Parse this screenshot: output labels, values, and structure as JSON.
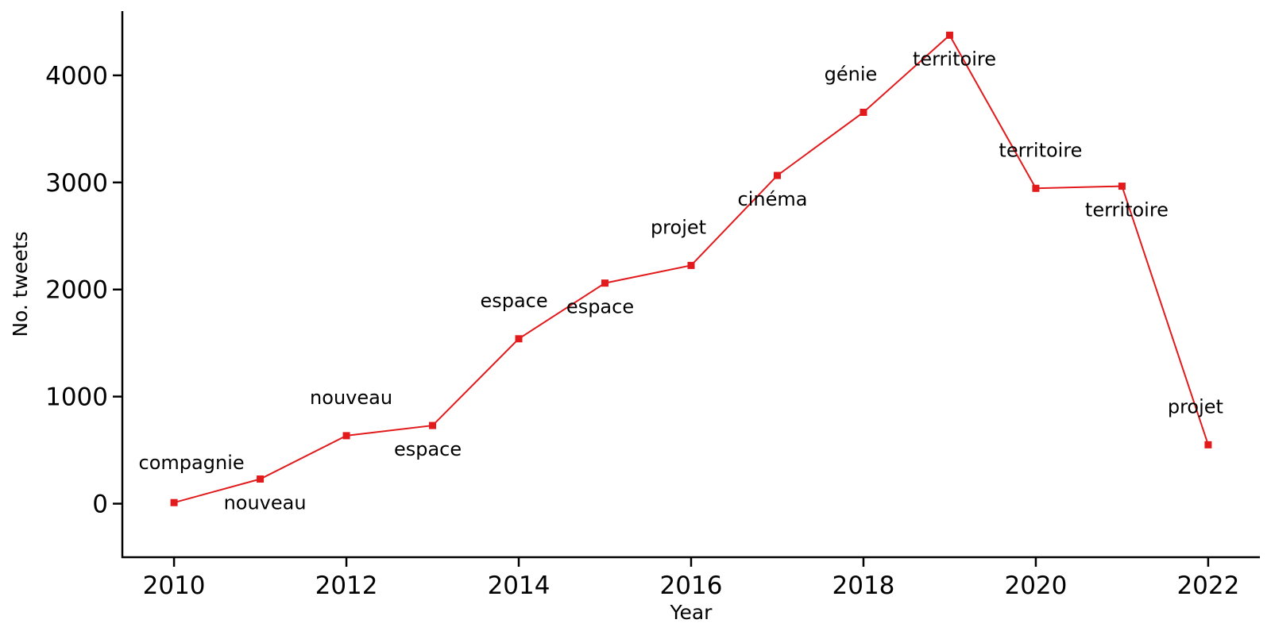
{
  "chart_data": {
    "type": "line",
    "title": "",
    "xlabel": "Year",
    "ylabel": "No. tweets",
    "xlim": [
      2009.4,
      2022.6
    ],
    "ylim": [
      -500,
      4600
    ],
    "x_ticks": [
      2010,
      2012,
      2014,
      2016,
      2018,
      2020,
      2022
    ],
    "y_ticks": [
      0,
      1000,
      2000,
      3000,
      4000
    ],
    "grid": false,
    "legend": "none",
    "series": [
      {
        "color": "#e31a1c",
        "marker": "square",
        "points": [
          {
            "x": 2010,
            "y": 10,
            "label": "compagnie"
          },
          {
            "x": 2011,
            "y": 230,
            "label": "nouveau"
          },
          {
            "x": 2012,
            "y": 635,
            "label": "nouveau"
          },
          {
            "x": 2013,
            "y": 730,
            "label": "espace"
          },
          {
            "x": 2014,
            "y": 1540,
            "label": "espace"
          },
          {
            "x": 2015,
            "y": 2060,
            "label": "espace"
          },
          {
            "x": 2016,
            "y": 2225,
            "label": "projet"
          },
          {
            "x": 2017,
            "y": 3065,
            "label": "cinéma"
          },
          {
            "x": 2018,
            "y": 3655,
            "label": "génie"
          },
          {
            "x": 2019,
            "y": 4375,
            "label": "territoire"
          },
          {
            "x": 2020,
            "y": 2945,
            "label": "territoire"
          },
          {
            "x": 2021,
            "y": 2965,
            "label": "territoire"
          },
          {
            "x": 2022,
            "y": 550,
            "label": "projet"
          }
        ]
      }
    ]
  }
}
